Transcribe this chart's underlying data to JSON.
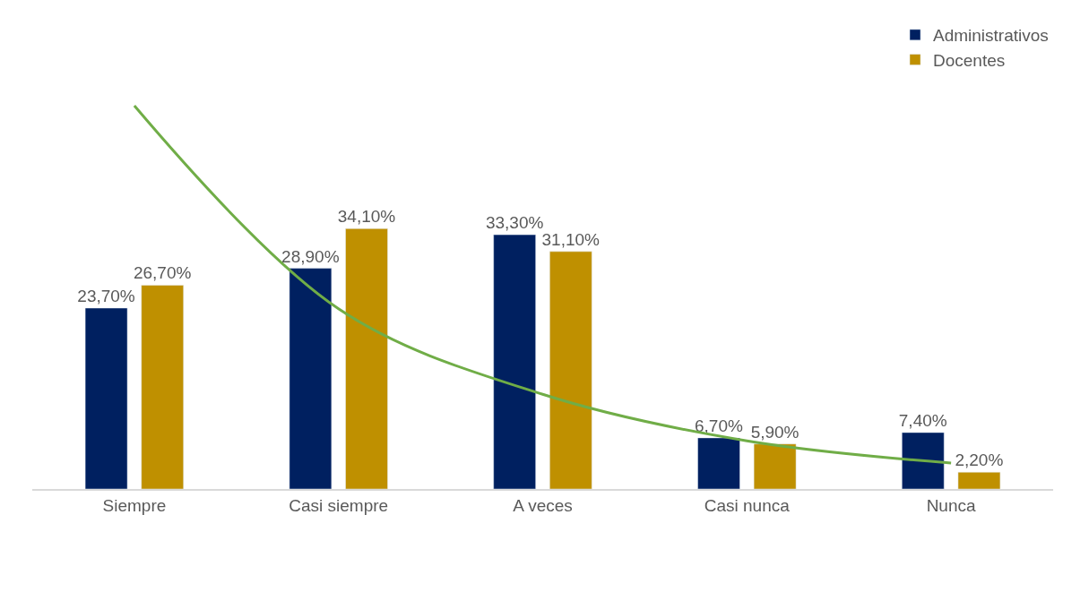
{
  "chart_data": {
    "type": "bar",
    "categories": [
      "Siempre",
      "Casi siempre",
      "A veces",
      "Casi nunca",
      "Nunca"
    ],
    "series": [
      {
        "name": "Administrativos",
        "color": "#002060",
        "values": [
          23.7,
          28.9,
          33.3,
          6.7,
          7.4
        ],
        "value_labels": [
          "23,70%",
          "28,90%",
          "33,30%",
          "6,70%",
          "7,40%"
        ]
      },
      {
        "name": "Docentes",
        "color": "#bf9000",
        "values": [
          26.7,
          34.1,
          31.1,
          5.9,
          2.2
        ],
        "value_labels": [
          "26,70%",
          "34,10%",
          "31,10%",
          "5,90%",
          "2,20%"
        ]
      },
      {
        "type": "line",
        "color": "#70ad47",
        "values": [
          50.2,
          23.6,
          12.4,
          6.3,
          3.4
        ],
        "marker": "none"
      }
    ],
    "legend": "top right"
  }
}
